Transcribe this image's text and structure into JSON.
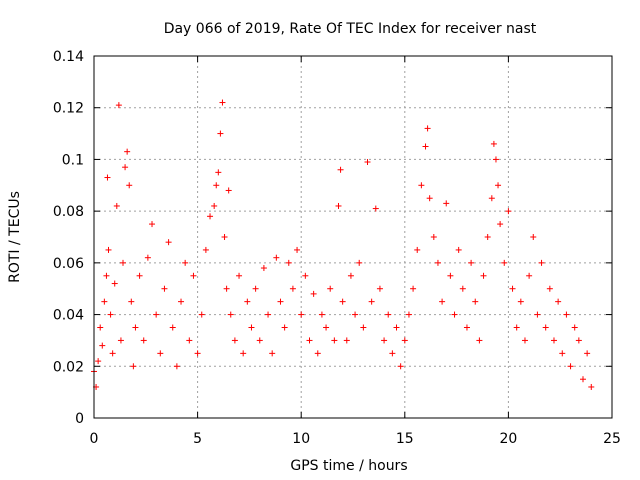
{
  "chart_data": {
    "type": "scatter",
    "title": "Day 066 of 2019, Rate Of TEC Index for receiver nast",
    "xlabel": "GPS time / hours",
    "ylabel": "ROTI / TECUs",
    "xlim": [
      0,
      25
    ],
    "ylim": [
      0,
      0.14
    ],
    "xticks": [
      0,
      5,
      10,
      15,
      20,
      25
    ],
    "xtick_labels": [
      "0",
      "5",
      "10",
      "15",
      "20",
      "25"
    ],
    "yticks": [
      0,
      0.02,
      0.04,
      0.06,
      0.08,
      0.1,
      0.12,
      0.14
    ],
    "ytick_labels": [
      "0",
      "0.02",
      "0.04",
      "0.06",
      "0.08",
      "0.1",
      "0.12",
      "0.14"
    ],
    "grid": true,
    "marker": "+",
    "color": "#ff0000",
    "series": [
      {
        "name": "ROTI",
        "points": [
          [
            0.0,
            0.018
          ],
          [
            0.1,
            0.012
          ],
          [
            0.2,
            0.022
          ],
          [
            0.3,
            0.035
          ],
          [
            0.4,
            0.028
          ],
          [
            0.5,
            0.045
          ],
          [
            0.6,
            0.055
          ],
          [
            0.65,
            0.093
          ],
          [
            0.7,
            0.065
          ],
          [
            0.8,
            0.04
          ],
          [
            0.9,
            0.025
          ],
          [
            1.0,
            0.052
          ],
          [
            1.1,
            0.082
          ],
          [
            1.2,
            0.121
          ],
          [
            1.3,
            0.03
          ],
          [
            1.4,
            0.06
          ],
          [
            1.5,
            0.097
          ],
          [
            1.6,
            0.103
          ],
          [
            1.7,
            0.09
          ],
          [
            1.8,
            0.045
          ],
          [
            1.9,
            0.02
          ],
          [
            2.0,
            0.035
          ],
          [
            2.2,
            0.055
          ],
          [
            2.4,
            0.03
          ],
          [
            2.6,
            0.062
          ],
          [
            2.8,
            0.075
          ],
          [
            3.0,
            0.04
          ],
          [
            3.2,
            0.025
          ],
          [
            3.4,
            0.05
          ],
          [
            3.6,
            0.068
          ],
          [
            3.8,
            0.035
          ],
          [
            4.0,
            0.02
          ],
          [
            4.2,
            0.045
          ],
          [
            4.4,
            0.06
          ],
          [
            4.6,
            0.03
          ],
          [
            4.8,
            0.055
          ],
          [
            5.0,
            0.025
          ],
          [
            5.2,
            0.04
          ],
          [
            5.4,
            0.065
          ],
          [
            5.6,
            0.078
          ],
          [
            5.8,
            0.082
          ],
          [
            5.9,
            0.09
          ],
          [
            6.0,
            0.095
          ],
          [
            6.1,
            0.11
          ],
          [
            6.2,
            0.122
          ],
          [
            6.3,
            0.07
          ],
          [
            6.4,
            0.05
          ],
          [
            6.5,
            0.088
          ],
          [
            6.6,
            0.04
          ],
          [
            6.8,
            0.03
          ],
          [
            7.0,
            0.055
          ],
          [
            7.2,
            0.025
          ],
          [
            7.4,
            0.045
          ],
          [
            7.6,
            0.035
          ],
          [
            7.8,
            0.05
          ],
          [
            8.0,
            0.03
          ],
          [
            8.2,
            0.058
          ],
          [
            8.4,
            0.04
          ],
          [
            8.6,
            0.025
          ],
          [
            8.8,
            0.062
          ],
          [
            9.0,
            0.045
          ],
          [
            9.2,
            0.035
          ],
          [
            9.4,
            0.06
          ],
          [
            9.6,
            0.05
          ],
          [
            9.8,
            0.065
          ],
          [
            10.0,
            0.04
          ],
          [
            10.2,
            0.055
          ],
          [
            10.4,
            0.03
          ],
          [
            10.6,
            0.048
          ],
          [
            10.8,
            0.025
          ],
          [
            11.0,
            0.04
          ],
          [
            11.2,
            0.035
          ],
          [
            11.4,
            0.05
          ],
          [
            11.6,
            0.03
          ],
          [
            11.8,
            0.082
          ],
          [
            11.9,
            0.096
          ],
          [
            12.0,
            0.045
          ],
          [
            12.2,
            0.03
          ],
          [
            12.4,
            0.055
          ],
          [
            12.6,
            0.04
          ],
          [
            12.8,
            0.06
          ],
          [
            13.0,
            0.035
          ],
          [
            13.2,
            0.099
          ],
          [
            13.4,
            0.045
          ],
          [
            13.6,
            0.081
          ],
          [
            13.8,
            0.05
          ],
          [
            14.0,
            0.03
          ],
          [
            14.2,
            0.04
          ],
          [
            14.4,
            0.025
          ],
          [
            14.6,
            0.035
          ],
          [
            14.8,
            0.02
          ],
          [
            15.0,
            0.03
          ],
          [
            15.2,
            0.04
          ],
          [
            15.4,
            0.05
          ],
          [
            15.6,
            0.065
          ],
          [
            15.8,
            0.09
          ],
          [
            16.0,
            0.105
          ],
          [
            16.1,
            0.112
          ],
          [
            16.2,
            0.085
          ],
          [
            16.4,
            0.07
          ],
          [
            16.6,
            0.06
          ],
          [
            16.8,
            0.045
          ],
          [
            17.0,
            0.083
          ],
          [
            17.2,
            0.055
          ],
          [
            17.4,
            0.04
          ],
          [
            17.6,
            0.065
          ],
          [
            17.8,
            0.05
          ],
          [
            18.0,
            0.035
          ],
          [
            18.2,
            0.06
          ],
          [
            18.4,
            0.045
          ],
          [
            18.6,
            0.03
          ],
          [
            18.8,
            0.055
          ],
          [
            19.0,
            0.07
          ],
          [
            19.2,
            0.085
          ],
          [
            19.3,
            0.106
          ],
          [
            19.4,
            0.1
          ],
          [
            19.5,
            0.09
          ],
          [
            19.6,
            0.075
          ],
          [
            19.8,
            0.06
          ],
          [
            20.0,
            0.08
          ],
          [
            20.2,
            0.05
          ],
          [
            20.4,
            0.035
          ],
          [
            20.6,
            0.045
          ],
          [
            20.8,
            0.03
          ],
          [
            21.0,
            0.055
          ],
          [
            21.2,
            0.07
          ],
          [
            21.4,
            0.04
          ],
          [
            21.6,
            0.06
          ],
          [
            21.8,
            0.035
          ],
          [
            22.0,
            0.05
          ],
          [
            22.2,
            0.03
          ],
          [
            22.4,
            0.045
          ],
          [
            22.6,
            0.025
          ],
          [
            22.8,
            0.04
          ],
          [
            23.0,
            0.02
          ],
          [
            23.2,
            0.035
          ],
          [
            23.4,
            0.03
          ],
          [
            23.6,
            0.015
          ],
          [
            23.8,
            0.025
          ],
          [
            24.0,
            0.012
          ]
        ]
      }
    ]
  }
}
